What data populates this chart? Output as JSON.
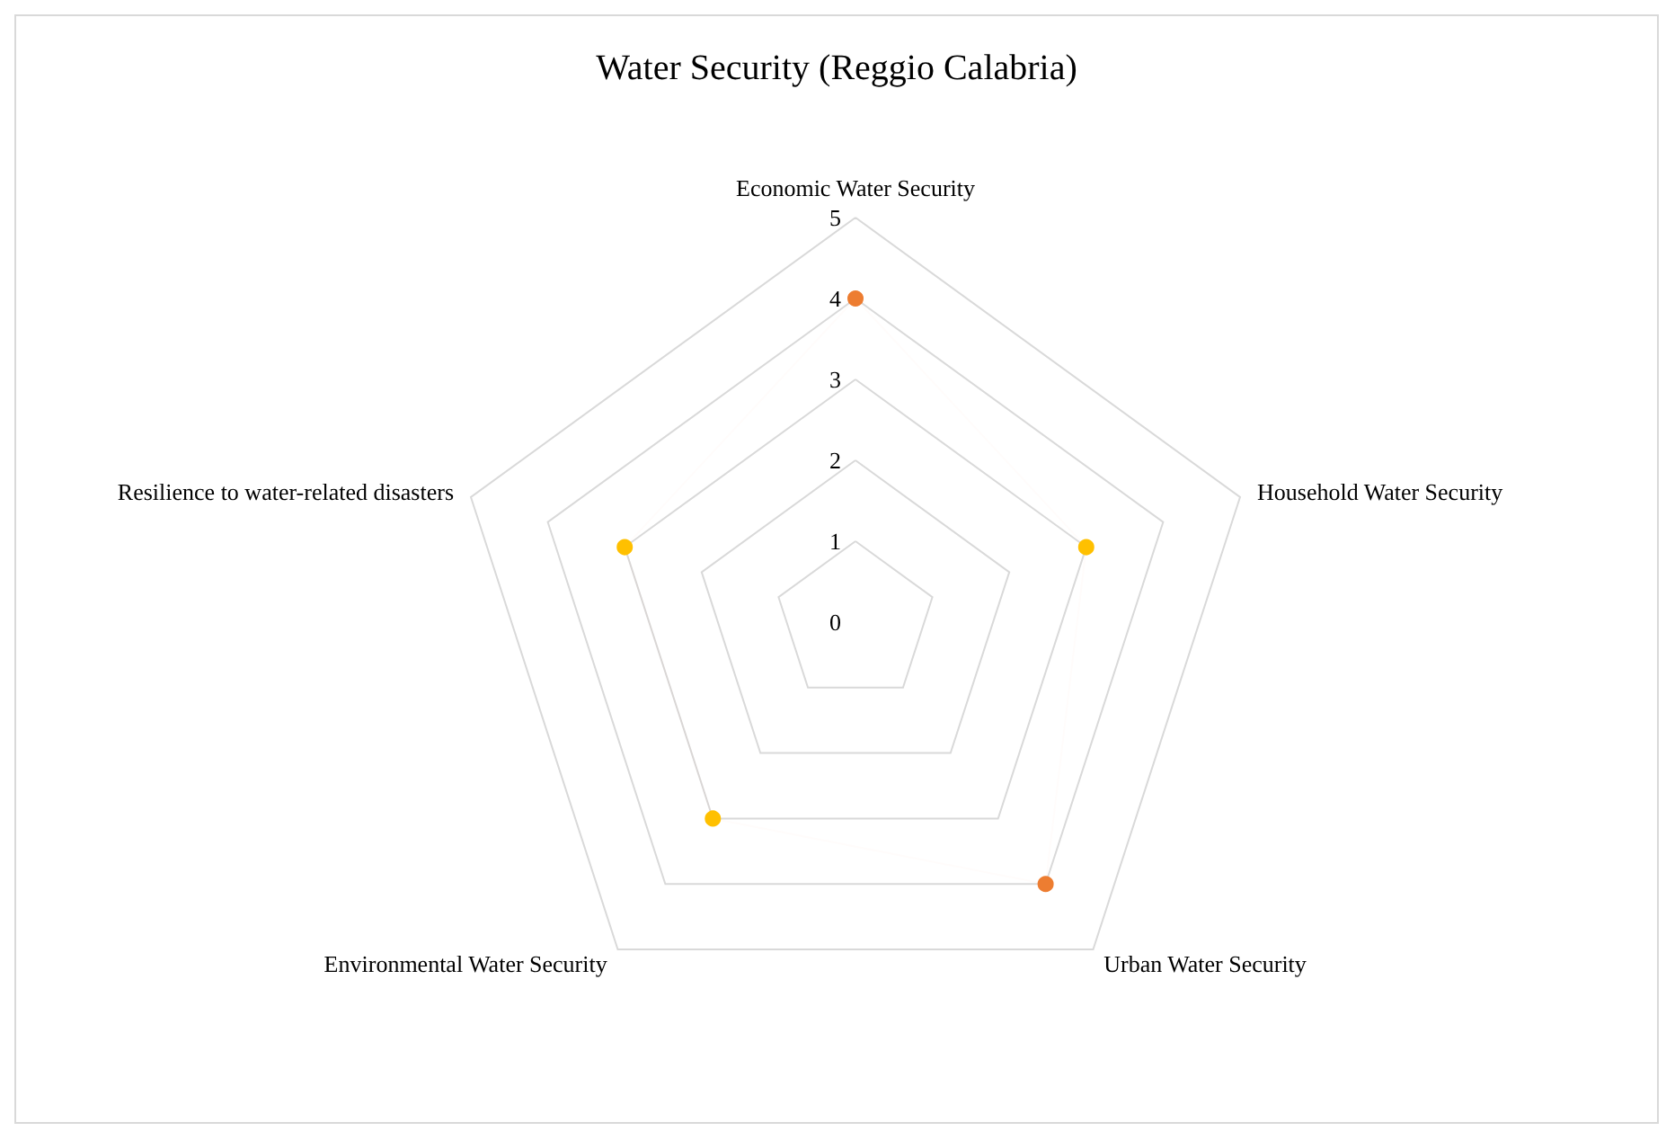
{
  "chart_data": {
    "type": "radar",
    "title": "Water Security (Reggio Calabria)",
    "categories": [
      "Economic Water Security",
      "Household Water Security",
      "Urban Water Security",
      "Environmental Water Security",
      "Resilience to water-related disasters"
    ],
    "values": [
      4,
      3,
      4,
      3,
      3
    ],
    "colors": [
      "#ed7d31",
      "#ffc000",
      "#ed7d31",
      "#ffc000",
      "#ffc000"
    ],
    "ylim": [
      0,
      5
    ],
    "yticks": [
      0,
      1,
      2,
      3,
      4,
      5
    ],
    "marker": "circle"
  }
}
